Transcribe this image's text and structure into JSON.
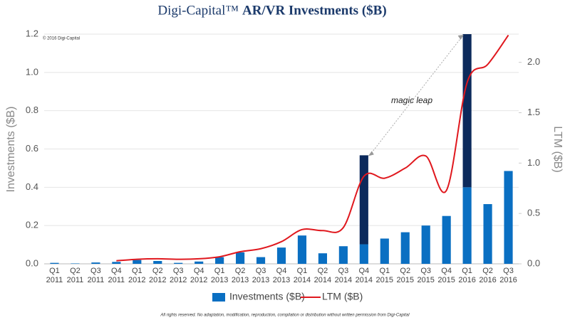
{
  "chart_data": {
    "type": "bar-line",
    "logo": "Digi-Capital™",
    "title": "AR/VR Investments ($B)",
    "copyright": "© 2016 Digi-Capital",
    "footer": "All rights reserved. No adaptation, modification, reproduction, compilation or distribution without written permission from Digi-Capital",
    "annotation": "magic leap",
    "ylabel": "Investments ($B)",
    "y2label": "LTM ($B)",
    "categories": [
      "Q1 2011",
      "Q2 2011",
      "Q3 2011",
      "Q4 2011",
      "Q1 2012",
      "Q2 2012",
      "Q3 2012",
      "Q4 2012",
      "Q1 2013",
      "Q2 2013",
      "Q3 2013",
      "Q4 2013",
      "Q1 2014",
      "Q2 2014",
      "Q3 2014",
      "Q4 2014",
      "Q1 2015",
      "Q2 2015",
      "Q3 2015",
      "Q4 2015",
      "Q1 2016",
      "Q2 2016",
      "Q3 2016"
    ],
    "series": [
      {
        "name": "Investments ($B)",
        "color": "#0a6fc2",
        "kind": "bar",
        "values": [
          0.005,
          0.002,
          0.007,
          0.01,
          0.02,
          0.015,
          0.005,
          0.012,
          0.035,
          0.06,
          0.035,
          0.085,
          0.148,
          0.055,
          0.092,
          0.102,
          0.132,
          0.165,
          0.2,
          0.25,
          0.4,
          0.312,
          0.485
        ]
      },
      {
        "color": "#0c2a5c",
        "kind": "bar-stack",
        "values": [
          null,
          null,
          null,
          null,
          null,
          null,
          null,
          null,
          null,
          null,
          null,
          null,
          null,
          null,
          null,
          0.465,
          null,
          null,
          null,
          null,
          0.8,
          null,
          null
        ]
      },
      {
        "name": "LTM ($B)",
        "color": "#e0181e",
        "kind": "line",
        "axis": "y2",
        "values": [
          null,
          null,
          null,
          0.03,
          0.045,
          0.05,
          0.045,
          0.05,
          0.07,
          0.12,
          0.15,
          0.22,
          0.34,
          0.33,
          0.36,
          0.87,
          0.85,
          0.95,
          1.07,
          0.73,
          1.8,
          1.98,
          2.27
        ]
      }
    ],
    "ylim": [
      0,
      1.2
    ],
    "yticks": [
      {
        "value": 0,
        "label": "0.0"
      },
      0.2,
      0.4,
      0.6,
      0.8,
      {
        "value": 1,
        "label": "1.0"
      },
      1.2
    ],
    "y2lim": [
      0,
      2.28
    ],
    "y2ticks": [
      {
        "value": 0,
        "label": "0.0"
      },
      0.5,
      {
        "value": 1,
        "label": "1.0"
      },
      1.5,
      {
        "value": 2,
        "label": "2.0"
      }
    ],
    "grid": true
  }
}
